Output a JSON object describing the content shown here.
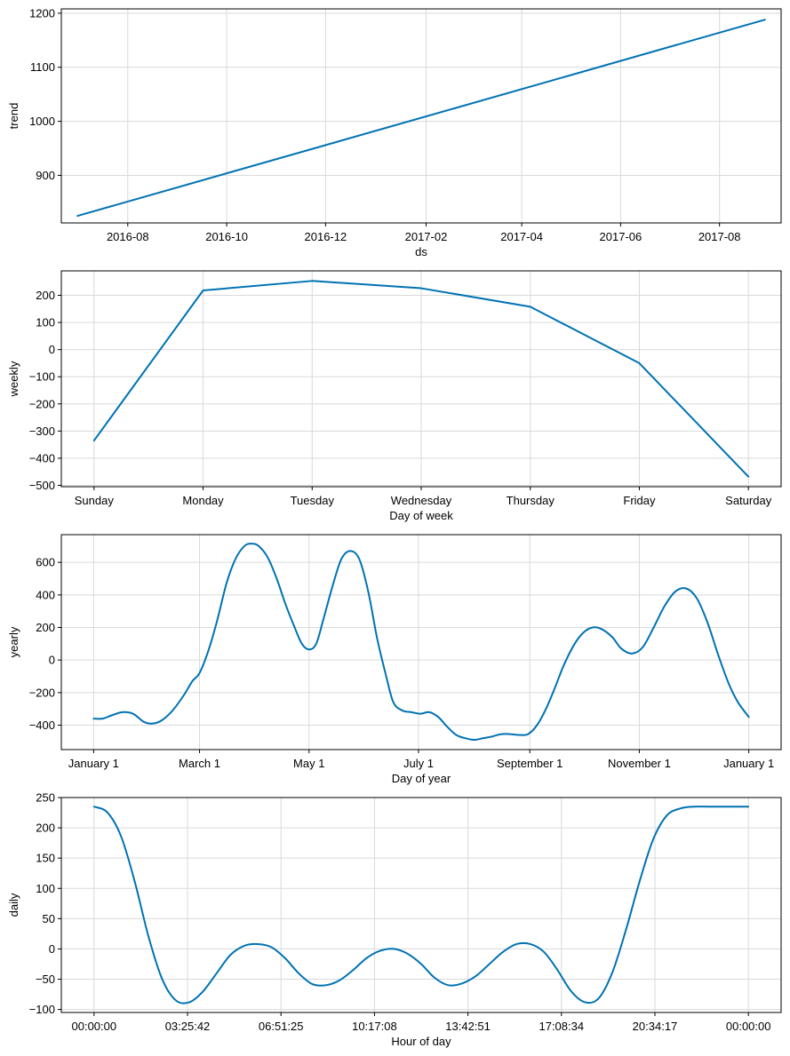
{
  "chart_data": [
    {
      "id": "trend",
      "type": "line",
      "xlabel": "ds",
      "ylabel": "trend",
      "x_type": "date",
      "xlim": [
        "2016-06-21",
        "2017-09-08"
      ],
      "ylim": [
        812,
        1208
      ],
      "x_ticks": [
        {
          "value": "2016-08-01",
          "label": "2016-08"
        },
        {
          "value": "2016-10-01",
          "label": "2016-10"
        },
        {
          "value": "2016-12-01",
          "label": "2016-12"
        },
        {
          "value": "2017-02-01",
          "label": "2017-02"
        },
        {
          "value": "2017-04-01",
          "label": "2017-04"
        },
        {
          "value": "2017-06-01",
          "label": "2017-06"
        },
        {
          "value": "2017-08-01",
          "label": "2017-08"
        }
      ],
      "y_ticks": [
        900,
        1000,
        1100,
        1200
      ],
      "grid": true,
      "color": "#0072B2",
      "x": [
        "2016-07-01",
        "2017-08-29"
      ],
      "y": [
        825,
        1188
      ]
    },
    {
      "id": "weekly",
      "type": "line",
      "xlabel": "Day of week",
      "ylabel": "weekly",
      "xlim": [
        -0.3,
        6.3
      ],
      "ylim": [
        -505,
        290
      ],
      "x_ticks": [
        {
          "value": 0,
          "label": "Sunday"
        },
        {
          "value": 1,
          "label": "Monday"
        },
        {
          "value": 2,
          "label": "Tuesday"
        },
        {
          "value": 3,
          "label": "Wednesday"
        },
        {
          "value": 4,
          "label": "Thursday"
        },
        {
          "value": 5,
          "label": "Friday"
        },
        {
          "value": 6,
          "label": "Saturday"
        }
      ],
      "y_ticks": [
        -500,
        -400,
        -300,
        -200,
        -100,
        0,
        100,
        200
      ],
      "grid": true,
      "color": "#0072B2",
      "x": [
        0,
        1,
        2,
        3,
        4,
        5,
        6
      ],
      "y": [
        -335,
        218,
        253,
        226,
        158,
        -50,
        -468
      ]
    },
    {
      "id": "yearly",
      "type": "line",
      "xlabel": "Day of year",
      "ylabel": "yearly",
      "xlim": [
        -18,
        383
      ],
      "ylim": [
        -550,
        770
      ],
      "x_ticks": [
        {
          "value": 0,
          "label": "January 1"
        },
        {
          "value": 59,
          "label": "March 1"
        },
        {
          "value": 120,
          "label": "May 1"
        },
        {
          "value": 181,
          "label": "July 1"
        },
        {
          "value": 243,
          "label": "September 1"
        },
        {
          "value": 304,
          "label": "November 1"
        },
        {
          "value": 365,
          "label": "January 1"
        }
      ],
      "y_ticks": [
        -400,
        -200,
        0,
        200,
        400,
        600
      ],
      "grid": true,
      "color": "#0072B2",
      "x": [
        0,
        5,
        10,
        16,
        22,
        28,
        33,
        38,
        44,
        50,
        55,
        59,
        64,
        69,
        74,
        79,
        84,
        88,
        92,
        97,
        102,
        107,
        112,
        116,
        120,
        124,
        128,
        133,
        138,
        143,
        148,
        153,
        158,
        163,
        167,
        172,
        177,
        182,
        187,
        192,
        197,
        202,
        207,
        212,
        217,
        222,
        227,
        232,
        237,
        242,
        247,
        252,
        257,
        262,
        268,
        273,
        278,
        283,
        289,
        294,
        300,
        306,
        312,
        318,
        324,
        330,
        336,
        342,
        348,
        354,
        359,
        365
      ],
      "y": [
        -360,
        -360,
        -340,
        -320,
        -330,
        -380,
        -390,
        -370,
        -310,
        -220,
        -130,
        -80,
        60,
        250,
        470,
        620,
        700,
        715,
        700,
        630,
        500,
        340,
        200,
        100,
        65,
        100,
        250,
        450,
        620,
        670,
        620,
        420,
        130,
        -100,
        -260,
        -310,
        -320,
        -330,
        -320,
        -350,
        -410,
        -460,
        -480,
        -490,
        -480,
        -470,
        -455,
        -455,
        -460,
        -455,
        -400,
        -300,
        -170,
        -30,
        100,
        170,
        200,
        190,
        140,
        70,
        40,
        80,
        200,
        330,
        420,
        440,
        380,
        230,
        30,
        -150,
        -260,
        -350
      ]
    },
    {
      "id": "daily",
      "type": "line",
      "xlabel": "Hour of day",
      "ylabel": "daily",
      "xlim": [
        -1.2,
        25.2
      ],
      "ylim": [
        -105,
        250
      ],
      "x_ticks": [
        {
          "value": 0,
          "label": "00:00:00"
        },
        {
          "value": 3.4283,
          "label": "03:25:42"
        },
        {
          "value": 6.8569,
          "label": "06:51:25"
        },
        {
          "value": 10.2856,
          "label": "10:17:08"
        },
        {
          "value": 13.7142,
          "label": "13:42:51"
        },
        {
          "value": 17.1428,
          "label": "17:08:34"
        },
        {
          "value": 20.5714,
          "label": "20:34:17"
        },
        {
          "value": 24,
          "label": "00:00:00"
        }
      ],
      "y_ticks": [
        -100,
        -50,
        0,
        50,
        100,
        150,
        200,
        250
      ],
      "grid": true,
      "color": "#0072B2",
      "x": [
        0,
        0.5,
        1,
        1.5,
        2,
        2.5,
        3,
        3.5,
        4,
        4.5,
        5,
        5.5,
        6,
        6.5,
        7,
        7.5,
        8,
        8.5,
        9,
        9.5,
        10,
        10.5,
        11,
        11.5,
        12,
        12.5,
        13,
        13.5,
        14,
        14.5,
        15,
        15.5,
        16,
        16.5,
        17,
        17.5,
        18,
        18.5,
        19,
        19.5,
        20,
        20.5,
        21,
        21.5,
        22,
        22.5,
        23,
        23.5,
        24
      ],
      "y": [
        235,
        225,
        185,
        110,
        20,
        -50,
        -85,
        -88,
        -70,
        -40,
        -10,
        5,
        8,
        3,
        -15,
        -40,
        -58,
        -60,
        -52,
        -35,
        -15,
        -3,
        0,
        -8,
        -25,
        -48,
        -60,
        -57,
        -45,
        -25,
        -5,
        8,
        8,
        -5,
        -35,
        -70,
        -88,
        -82,
        -40,
        30,
        110,
        180,
        220,
        232,
        235,
        235,
        235,
        235,
        235
      ]
    }
  ]
}
